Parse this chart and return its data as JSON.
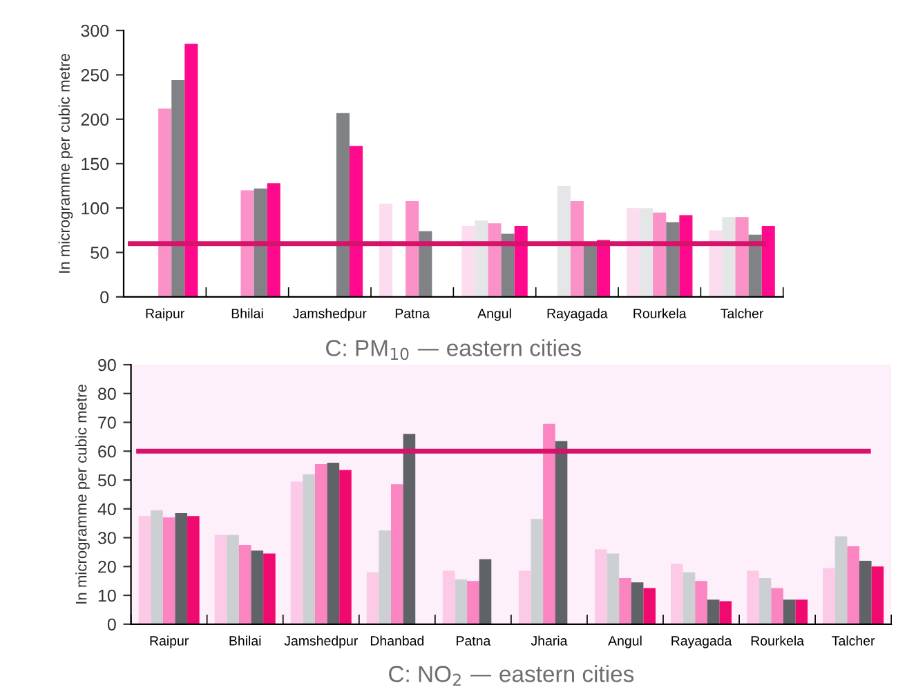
{
  "chart_data": [
    {
      "type": "bar",
      "title": "C: PM$_{10}$ — eastern cities",
      "ylabel": "In microgramme per cubic metre",
      "categories": [
        "Raipur",
        "Bhilai",
        "Jamshedpur",
        "Patna",
        "Angul",
        "Rayagada",
        "Rourkela",
        "Talcher"
      ],
      "series": [
        {
          "color": "#fcdcef",
          "values": [
            null,
            null,
            null,
            105,
            80,
            null,
            100,
            75
          ]
        },
        {
          "color": "#e4e6e8",
          "values": [
            null,
            null,
            null,
            null,
            86,
            125,
            100,
            90
          ]
        },
        {
          "color": "#fa92c8",
          "values": [
            212,
            120,
            null,
            108,
            83,
            108,
            95,
            90
          ]
        },
        {
          "color": "#808285",
          "values": [
            244,
            122,
            207,
            74,
            71,
            60,
            84,
            70
          ]
        },
        {
          "color": "#ff0a8c",
          "values": [
            285,
            128,
            170,
            null,
            80,
            64,
            92,
            80
          ]
        }
      ],
      "ylim": [
        0,
        300
      ],
      "yticks": [
        0,
        50,
        100,
        150,
        200,
        250,
        300
      ],
      "ref_lines": [
        {
          "axis": "y",
          "value": 60,
          "color": "#d6136a"
        }
      ],
      "grid": false,
      "legend": false
    },
    {
      "type": "bar",
      "title": "C: NO$_{2}$ — eastern cities",
      "ylabel": "In microgramme per cubic metre",
      "categories": [
        "Raipur",
        "Bhilai",
        "Jamshedpur",
        "Dhanbad",
        "Patna",
        "Jharia",
        "Angul",
        "Rayagada",
        "Rourkela",
        "Talcher"
      ],
      "series": [
        {
          "color": "#fccae6",
          "values": [
            37.5,
            31,
            49.5,
            18,
            18.5,
            18.5,
            26,
            21,
            18.5,
            19.5
          ]
        },
        {
          "color": "#cdd0d3",
          "values": [
            39.5,
            31,
            52,
            32.5,
            15.5,
            36.5,
            24.5,
            18,
            16,
            30.5
          ]
        },
        {
          "color": "#fa85c0",
          "values": [
            37,
            27.5,
            55.5,
            48.5,
            15,
            69.5,
            16,
            15,
            12.5,
            27
          ]
        },
        {
          "color": "#5f6266",
          "values": [
            38.5,
            25.5,
            56,
            66,
            22.5,
            63.5,
            14.5,
            8.5,
            8.5,
            22
          ]
        },
        {
          "color": "#f0096f",
          "values": [
            37.5,
            24.5,
            53.5,
            null,
            null,
            null,
            12.5,
            8,
            8.5,
            20
          ]
        }
      ],
      "ylim": [
        0,
        90
      ],
      "yticks": [
        0,
        10,
        20,
        30,
        40,
        50,
        60,
        70,
        80,
        90
      ],
      "ref_lines": [
        {
          "axis": "y",
          "value": 60,
          "color": "#d6136a"
        }
      ],
      "grid": false,
      "legend": false
    }
  ]
}
